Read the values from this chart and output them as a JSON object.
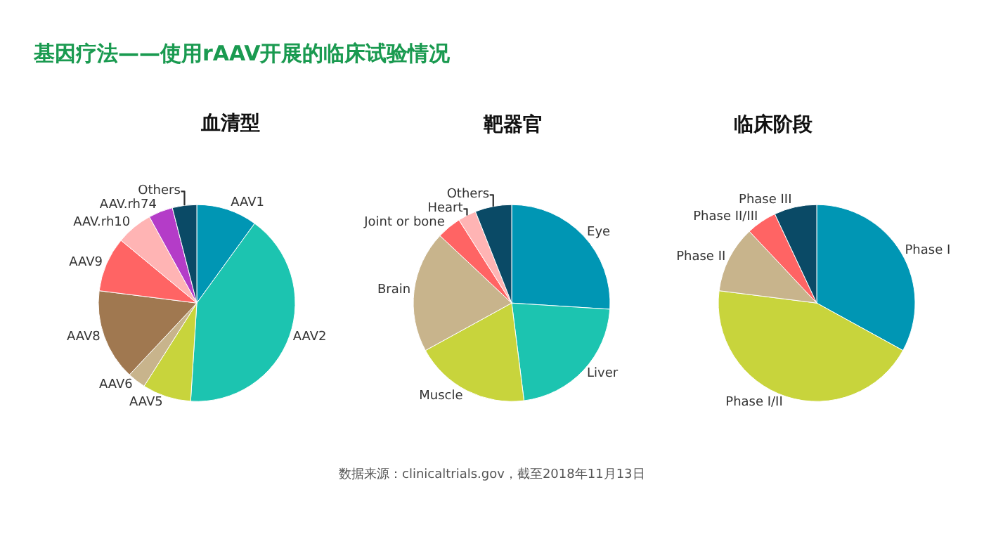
{
  "chart_data": [
    {
      "type": "pie",
      "title": "血清型",
      "categories": [
        "AAV1",
        "AAV2",
        "AAV5",
        "AAV6",
        "AAV8",
        "AAV9",
        "AAV.rh10",
        "AAV.rh74",
        "Others"
      ],
      "values": [
        10,
        41,
        8,
        3,
        15,
        9,
        6,
        4,
        4
      ],
      "colors": [
        "#0096b4",
        "#1cc4b0",
        "#c8d43c",
        "#c8b48c",
        "#a07850",
        "#ff6464",
        "#ffb4b4",
        "#b43cc8",
        "#0a4a66"
      ],
      "annotations": [
        "基因疗法——使用rAAV开展的临床试验情况",
        "数据来源：clinicaltrials.gov，截至2018年11月13日"
      ]
    },
    {
      "type": "pie",
      "title": "靶器官",
      "categories": [
        "Eye",
        "Liver",
        "Muscle",
        "Brain",
        "Joint or bone",
        "Heart",
        "Others"
      ],
      "values": [
        26,
        22,
        19,
        20,
        4,
        3,
        6
      ],
      "colors": [
        "#0096b4",
        "#1cc4b0",
        "#c8d43c",
        "#c8b48c",
        "#ff6464",
        "#ffb4b4",
        "#0a4a66"
      ]
    },
    {
      "type": "pie",
      "title": "临床阶段",
      "categories": [
        "Phase I",
        "Phase I/II",
        "Phase II",
        "Phase II/III",
        "Phase III"
      ],
      "values": [
        33,
        44,
        11,
        5,
        7
      ],
      "colors": [
        "#0096b4",
        "#c8d43c",
        "#c8b48c",
        "#ff6464",
        "#0a4a66"
      ]
    }
  ]
}
